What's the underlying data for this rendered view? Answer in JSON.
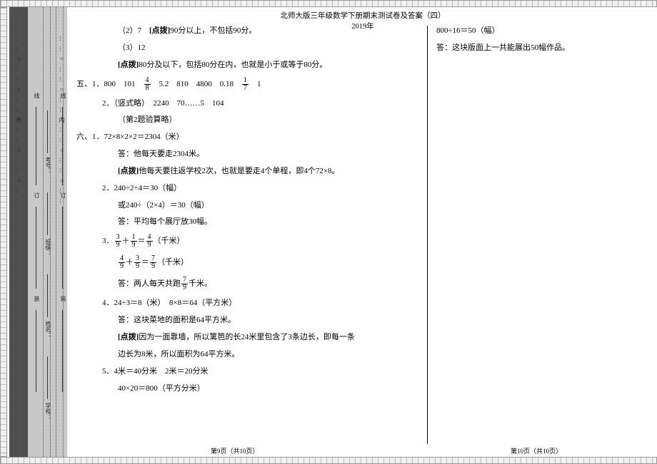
{
  "header": {
    "title": "北师大版三年级数学下册期末测试卷及答案（四）",
    "year": "2019年"
  },
  "binding": {
    "outer_dots": "……○……○……外……○……○……",
    "inner_dots": "……○……○……内……○……○……",
    "labels": {
      "school": "学校：",
      "name": "姓名：",
      "class": "班级：",
      "number": "考号："
    },
    "seg_words": {
      "zhuang": "装",
      "ding": "订",
      "xian": "线"
    }
  },
  "left": [
    {
      "cls": "ind1",
      "t": "（2）7　[点拨]90分以上，不包括90分。"
    },
    {
      "cls": "ind1",
      "t": "（3）12"
    },
    {
      "cls": "ind1",
      "t": "[点拨]80分及以下，包括80分在内，也就是小于或等于80分。"
    },
    {
      "cls": "sec",
      "html": "五、1．800　101　<span class='frac'><span class='n'>4</span><span class='d'>8</span></span>　5.2　810　4800　0.18　<span class='frac'><span class='n'>1</span><span class='d'>7</span></span>　1"
    },
    {
      "cls": "ind2",
      "t": "2．（竖式略）　2240　70……5　104"
    },
    {
      "cls": "ind1",
      "t": "（第2题验算略）"
    },
    {
      "cls": "sec",
      "t": "六、1．72×8×2×2＝2304（米）"
    },
    {
      "cls": "ind1",
      "t": "答：他每天要走2304米。"
    },
    {
      "cls": "ind1",
      "t": "[点拨]他每天要往返学校2次，也就是要走4个单程，即4个72×8。"
    },
    {
      "cls": "ind2",
      "t": "2．240÷2÷4＝30（幅）"
    },
    {
      "cls": "ind1",
      "t": "或240÷（2×4）＝30（幅）"
    },
    {
      "cls": "ind1",
      "t": "答：平均每个展厅放30幅。"
    },
    {
      "cls": "ind2",
      "html": "3．<span class='frac'><span class='n'>3</span><span class='d'>9</span></span>＋<span class='frac'><span class='n'>1</span><span class='d'>9</span></span>＝<span class='frac'><span class='n'>4</span><span class='d'>9</span></span>（千米）"
    },
    {
      "cls": "ind1",
      "html": "<span class='frac'><span class='n'>4</span><span class='d'>9</span></span>＋<span class='frac'><span class='n'>3</span><span class='d'>9</span></span>＝<span class='frac'><span class='n'>7</span><span class='d'>9</span></span>（千米）"
    },
    {
      "cls": "ind1",
      "html": "答：两人每天共跑<span class='frac'><span class='n'>7</span><span class='d'>9</span></span>千米。"
    },
    {
      "cls": "ind2",
      "t": "4．24÷3＝8（米）　8×8＝64（平方米）"
    },
    {
      "cls": "ind1",
      "t": "答：这块菜地的面积是64平方米。"
    },
    {
      "cls": "ind1",
      "t": "[点拨]因为一面靠墙，所以篱笆的长24米里包含了3条边长，即每一条"
    },
    {
      "cls": "ind1",
      "t": "边长为8米，所以面积为64平方米。"
    },
    {
      "cls": "ind2",
      "t": "5．4米＝40分米　2米＝20分米"
    },
    {
      "cls": "ind1",
      "t": "40×20＝800（平方分米）"
    }
  ],
  "right": [
    {
      "cls": "ind0",
      "t": "800÷16＝50（幅）"
    },
    {
      "cls": "ind0",
      "t": "答：这块版面上一共能展出50幅作品。"
    }
  ],
  "footer": {
    "left": "第9页（共10页）",
    "right": "第10页（共10页）"
  }
}
